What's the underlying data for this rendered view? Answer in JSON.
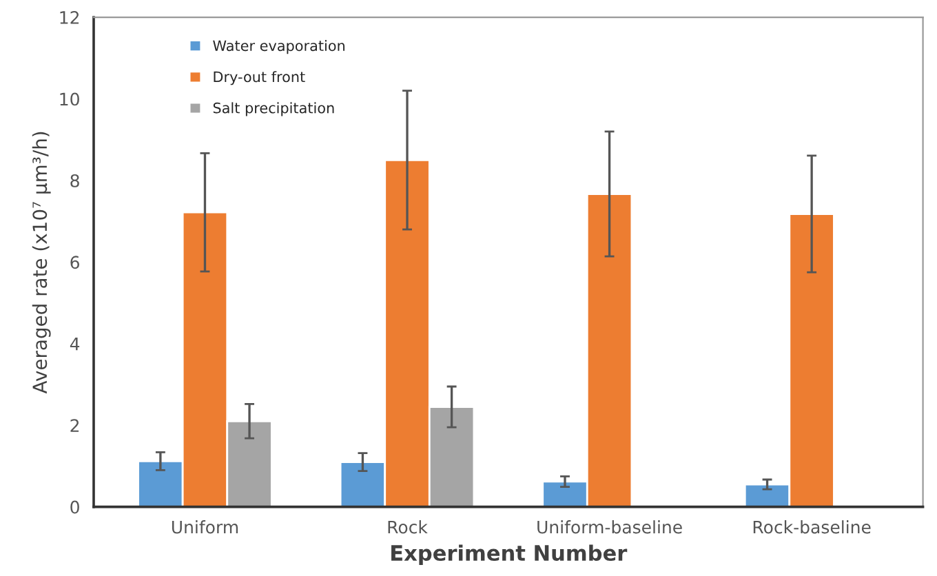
{
  "chart_data": {
    "type": "bar",
    "xlabel": "Experiment Number",
    "ylabel": "Averaged rate (x10⁷ µm³/h)",
    "categories": [
      "Uniform",
      "Rock",
      "Uniform-baseline",
      "Rock-baseline"
    ],
    "series": [
      {
        "name": "Water evaporation",
        "color": "#5b9bd5",
        "values": [
          1.12,
          1.1,
          0.62,
          0.55
        ],
        "errors": [
          0.22,
          0.22,
          0.13,
          0.12
        ]
      },
      {
        "name": "Dry-out front",
        "color": "#ed7d31",
        "values": [
          7.22,
          8.5,
          7.67,
          7.18
        ],
        "errors": [
          1.45,
          1.7,
          1.53,
          1.43
        ]
      },
      {
        "name": "Salt precipitation",
        "color": "#a5a5a5",
        "values": [
          2.1,
          2.45,
          null,
          null
        ],
        "errors": [
          0.42,
          0.5,
          null,
          null
        ]
      }
    ],
    "ylim": [
      0,
      12
    ],
    "yticks": [
      0,
      2,
      4,
      6,
      8,
      10,
      12
    ],
    "grid": false,
    "legend": "top left"
  }
}
